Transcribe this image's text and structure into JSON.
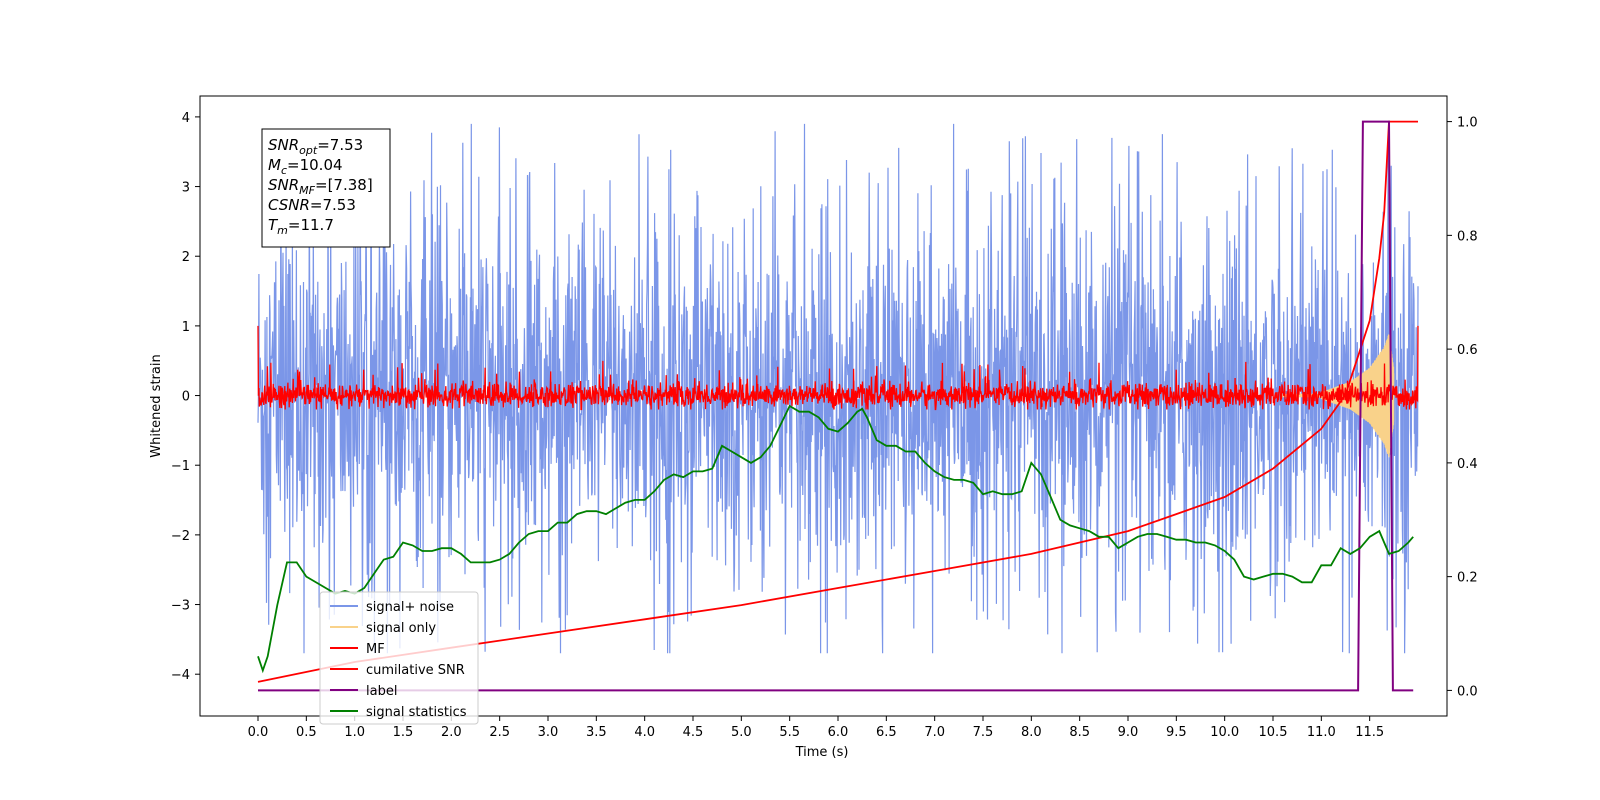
{
  "chart_data": {
    "type": "line",
    "xlabel": "Time (s)",
    "ylabel": "Whitened strain",
    "xlim": [
      -0.6,
      12.3
    ],
    "ylim": [
      -4.6,
      4.3
    ],
    "y2lim": [
      -0.045,
      1.045
    ],
    "x_ticks": [
      "0.0",
      "0.5",
      "1.0",
      "1.5",
      "2.0",
      "2.5",
      "3.0",
      "3.5",
      "4.0",
      "4.5",
      "5.0",
      "5.5",
      "6.0",
      "6.5",
      "7.0",
      "7.5",
      "8.0",
      "8.5",
      "9.0",
      "9.5",
      "10.0",
      "10.5",
      "11.0",
      "11.5"
    ],
    "y_ticks": [
      "4",
      "3",
      "2",
      "1",
      "0",
      "−1",
      "−2",
      "−3",
      "−4"
    ],
    "y2_ticks": [
      "1.0",
      "0.8",
      "0.6",
      "0.4",
      "0.2",
      "0.0"
    ],
    "grid": false,
    "legend_position": "lower-left",
    "stats_box": [
      {
        "symbol": "SNR",
        "sub": "opt",
        "value": "=7.53"
      },
      {
        "symbol": "M",
        "sub": "c",
        "value": "=10.04"
      },
      {
        "symbol": "SNR",
        "sub": "MF",
        "value": "=[7.38]"
      },
      {
        "symbol": "CSNR",
        "sub": "",
        "value": "=7.53"
      },
      {
        "symbol": "T",
        "sub": "m",
        "value": "=11.7"
      }
    ],
    "series": [
      {
        "name": "signal+ noise",
        "color": "#7b96e8",
        "axis": "left",
        "kind": "noise",
        "noise_range": [
          -3.7,
          3.9
        ],
        "x_range": [
          0.0,
          12.0
        ]
      },
      {
        "name": "signal only",
        "color": "#f9d28a",
        "axis": "left",
        "kind": "chirp",
        "envelope": {
          "x": [
            11.0,
            11.3,
            11.5,
            11.65,
            11.7,
            11.75
          ],
          "amp": [
            0.05,
            0.2,
            0.4,
            0.7,
            0.9,
            0.4
          ]
        }
      },
      {
        "name": "MF",
        "color": "#ff0000",
        "axis": "left",
        "kind": "noise",
        "noise_range": [
          -0.2,
          0.5
        ],
        "x_range": [
          0.0,
          12.0
        ]
      },
      {
        "name": "cumilative SNR",
        "color": "#ff0000",
        "axis": "right",
        "x": [
          0.0,
          1.0,
          2.0,
          3.0,
          4.0,
          5.0,
          6.0,
          7.0,
          8.0,
          9.0,
          9.5,
          10.0,
          10.5,
          11.0,
          11.25,
          11.5,
          11.6,
          11.65,
          11.7,
          11.75,
          12.0
        ],
        "y": [
          0.015,
          0.05,
          0.075,
          0.1,
          0.125,
          0.15,
          0.18,
          0.21,
          0.24,
          0.28,
          0.31,
          0.34,
          0.39,
          0.46,
          0.52,
          0.65,
          0.76,
          0.84,
          1.0,
          1.0,
          1.0
        ]
      },
      {
        "name": "label",
        "color": "#800080",
        "axis": "right",
        "x": [
          0.0,
          11.38,
          11.43,
          11.7,
          11.74,
          11.95
        ],
        "y": [
          0.0,
          0.0,
          1.0,
          1.0,
          0.0,
          0.0
        ]
      },
      {
        "name": "signal statistics",
        "color": "#008000",
        "axis": "right",
        "x": [
          0.0,
          0.05,
          0.1,
          0.2,
          0.3,
          0.4,
          0.5,
          0.7,
          0.8,
          0.9,
          1.0,
          1.1,
          1.2,
          1.3,
          1.4,
          1.5,
          1.6,
          1.7,
          1.8,
          1.9,
          2.0,
          2.1,
          2.2,
          2.3,
          2.4,
          2.5,
          2.6,
          2.7,
          2.8,
          2.9,
          3.0,
          3.1,
          3.2,
          3.3,
          3.4,
          3.5,
          3.6,
          3.7,
          3.8,
          3.9,
          4.0,
          4.1,
          4.2,
          4.3,
          4.4,
          4.5,
          4.6,
          4.7,
          4.8,
          4.9,
          5.0,
          5.1,
          5.2,
          5.3,
          5.4,
          5.5,
          5.6,
          5.7,
          5.8,
          5.9,
          6.0,
          6.1,
          6.2,
          6.25,
          6.3,
          6.4,
          6.5,
          6.6,
          6.7,
          6.8,
          6.9,
          7.0,
          7.1,
          7.2,
          7.3,
          7.4,
          7.5,
          7.6,
          7.7,
          7.8,
          7.9,
          8.0,
          8.1,
          8.2,
          8.3,
          8.4,
          8.5,
          8.6,
          8.7,
          8.8,
          8.9,
          9.0,
          9.1,
          9.2,
          9.3,
          9.4,
          9.5,
          9.6,
          9.7,
          9.8,
          9.9,
          10.0,
          10.1,
          10.2,
          10.3,
          10.4,
          10.5,
          10.6,
          10.7,
          10.8,
          10.9,
          11.0,
          11.1,
          11.2,
          11.3,
          11.4,
          11.5,
          11.6,
          11.7,
          11.8,
          11.9,
          11.95
        ],
        "y": [
          0.06,
          0.035,
          0.06,
          0.15,
          0.225,
          0.225,
          0.2,
          0.18,
          0.17,
          0.175,
          0.17,
          0.18,
          0.205,
          0.23,
          0.235,
          0.26,
          0.255,
          0.245,
          0.245,
          0.25,
          0.25,
          0.24,
          0.225,
          0.225,
          0.225,
          0.23,
          0.24,
          0.26,
          0.275,
          0.28,
          0.28,
          0.295,
          0.295,
          0.31,
          0.315,
          0.315,
          0.31,
          0.32,
          0.33,
          0.335,
          0.335,
          0.35,
          0.37,
          0.38,
          0.375,
          0.385,
          0.385,
          0.39,
          0.43,
          0.42,
          0.41,
          0.4,
          0.41,
          0.43,
          0.465,
          0.5,
          0.49,
          0.49,
          0.48,
          0.46,
          0.455,
          0.47,
          0.49,
          0.495,
          0.48,
          0.44,
          0.43,
          0.43,
          0.42,
          0.42,
          0.4,
          0.385,
          0.375,
          0.37,
          0.37,
          0.365,
          0.345,
          0.35,
          0.345,
          0.345,
          0.35,
          0.4,
          0.38,
          0.34,
          0.3,
          0.29,
          0.285,
          0.28,
          0.27,
          0.27,
          0.25,
          0.26,
          0.27,
          0.275,
          0.275,
          0.27,
          0.265,
          0.265,
          0.26,
          0.26,
          0.255,
          0.245,
          0.23,
          0.2,
          0.195,
          0.2,
          0.205,
          0.205,
          0.2,
          0.19,
          0.19,
          0.22,
          0.22,
          0.25,
          0.24,
          0.25,
          0.27,
          0.28,
          0.24,
          0.245,
          0.26,
          0.27
        ]
      }
    ]
  }
}
